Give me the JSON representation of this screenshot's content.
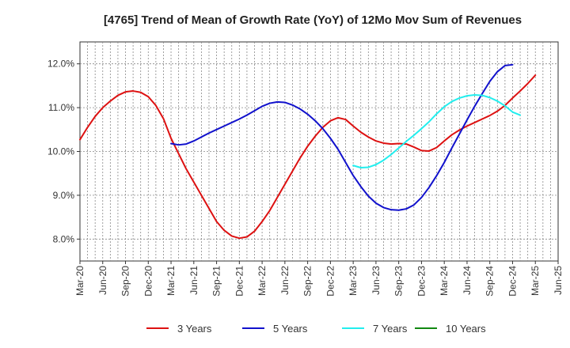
{
  "chart_data": {
    "type": "line",
    "title": "[4765]  Trend of Mean of Growth Rate (YoY) of 12Mo Mov Sum of Revenues",
    "xlabel": "",
    "ylabel": "",
    "ylim": [
      7.5,
      12.5
    ],
    "y_ticks": [
      8.0,
      9.0,
      10.0,
      11.0,
      12.0
    ],
    "y_tick_labels": [
      "8.0%",
      "9.0%",
      "10.0%",
      "11.0%",
      "12.0%"
    ],
    "x_tick_labels": [
      "Mar-20",
      "Jun-20",
      "Sep-20",
      "Dec-20",
      "Mar-21",
      "Jun-21",
      "Sep-21",
      "Dec-21",
      "Mar-22",
      "Jun-22",
      "Sep-22",
      "Dec-22",
      "Mar-23",
      "Jun-23",
      "Sep-23",
      "Dec-23",
      "Mar-24",
      "Jun-24",
      "Sep-24",
      "Dec-24",
      "Mar-25",
      "Jun-25"
    ],
    "grid": true,
    "legend_position": "bottom",
    "series": [
      {
        "name": "3 Years",
        "color": "#dd1111",
        "start_month": 0,
        "values": [
          10.27,
          10.55,
          10.8,
          11.0,
          11.15,
          11.28,
          11.36,
          11.38,
          11.35,
          11.25,
          11.05,
          10.75,
          10.3,
          9.95,
          9.6,
          9.3,
          9.0,
          8.7,
          8.4,
          8.2,
          8.07,
          8.02,
          8.05,
          8.18,
          8.4,
          8.65,
          8.95,
          9.25,
          9.55,
          9.85,
          10.12,
          10.35,
          10.55,
          10.7,
          10.77,
          10.73,
          10.58,
          10.44,
          10.33,
          10.24,
          10.19,
          10.17,
          10.18,
          10.17,
          10.1,
          10.02,
          10.01,
          10.09,
          10.24,
          10.38,
          10.49,
          10.58,
          10.66,
          10.74,
          10.82,
          10.92,
          11.05,
          11.22,
          11.38,
          11.55,
          11.74
        ]
      },
      {
        "name": "5 Years",
        "color": "#1111cc",
        "start_month": 12,
        "values": [
          10.18,
          10.15,
          10.17,
          10.24,
          10.33,
          10.42,
          10.5,
          10.58,
          10.66,
          10.74,
          10.83,
          10.93,
          11.03,
          11.1,
          11.13,
          11.12,
          11.06,
          10.97,
          10.85,
          10.7,
          10.52,
          10.3,
          10.05,
          9.75,
          9.45,
          9.2,
          8.98,
          8.82,
          8.72,
          8.67,
          8.66,
          8.69,
          8.78,
          8.95,
          9.18,
          9.45,
          9.75,
          10.08,
          10.4,
          10.72,
          11.03,
          11.32,
          11.6,
          11.82,
          11.96,
          11.98
        ]
      },
      {
        "name": "7 Years",
        "color": "#22eeee",
        "start_month": 36,
        "values": [
          9.68,
          9.63,
          9.64,
          9.7,
          9.8,
          9.93,
          10.08,
          10.23,
          10.37,
          10.52,
          10.68,
          10.86,
          11.02,
          11.14,
          11.22,
          11.27,
          11.29,
          11.28,
          11.23,
          11.15,
          11.04,
          10.9,
          10.83
        ]
      },
      {
        "name": "10 Years",
        "color": "#118811",
        "start_month": 0,
        "values": []
      }
    ]
  }
}
